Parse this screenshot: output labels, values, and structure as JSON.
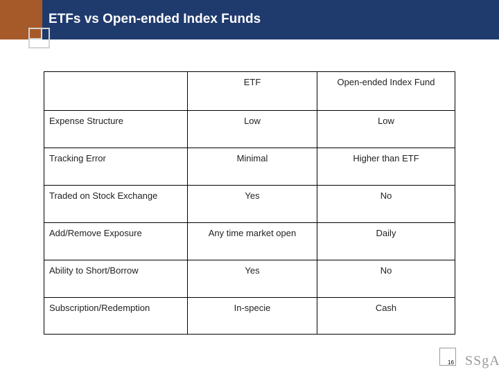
{
  "slide": {
    "title": "ETFs vs Open-ended Index Funds",
    "page_number": "16",
    "logo_text": "SSgA"
  },
  "colors": {
    "title_bar": "#1f3a6d",
    "title_accent": "#a65a2a",
    "square_outline": "#d4d4d4"
  },
  "table": {
    "headers": [
      "",
      "ETF",
      "Open-ended Index Fund"
    ],
    "rows": [
      [
        "Expense Structure",
        "Low",
        "Low"
      ],
      [
        "Tracking Error",
        "Minimal",
        "Higher than ETF"
      ],
      [
        "Traded on Stock Exchange",
        "Yes",
        "No"
      ],
      [
        "Add/Remove Exposure",
        "Any time market open",
        "Daily"
      ],
      [
        "Ability to Short/Borrow",
        "Yes",
        "No"
      ],
      [
        "Subscription/Redemption",
        "In-specie",
        "Cash"
      ]
    ]
  }
}
